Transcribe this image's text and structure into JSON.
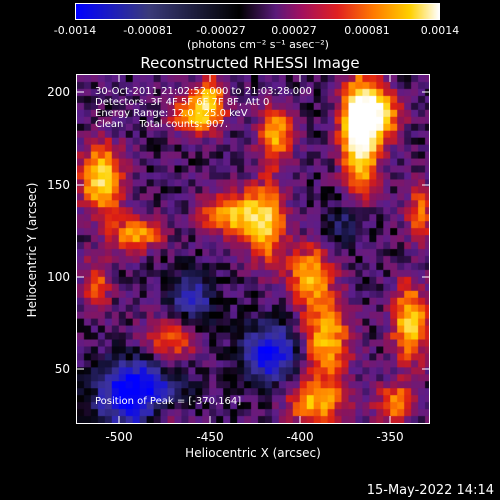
{
  "colorbar": {
    "ticks": [
      "-0.0014",
      "-0.00081",
      "-0.00027",
      "0.00027",
      "0.00081",
      "0.0014"
    ],
    "units": "(photons cm⁻² s⁻¹ asec⁻²)"
  },
  "plot": {
    "title": "Reconstructed RHESSI Image",
    "info_lines": [
      "30-Oct-2011 21:02:52.000 to 21:03:28.000",
      "Detectors: 3F 4F 5F 6F 7F 8F, Att 0",
      "Energy Range: 12.0 - 25.0 keV",
      "Clean     Total counts: 907."
    ],
    "peak_label": "Position of Peak = [-370,164]",
    "xlabel": "Heliocentric X (arcsec)",
    "ylabel": "Heliocentric Y (arcsec)",
    "xticks": [
      "-500",
      "-450",
      "-400",
      "-350"
    ],
    "yticks": [
      "200",
      "150",
      "100",
      "50"
    ]
  },
  "footer": {
    "date": "15-May-2022 14:14"
  },
  "colors": {
    "low": "#0000ff",
    "mid": "#7b29b8",
    "high": "#ffffff"
  }
}
